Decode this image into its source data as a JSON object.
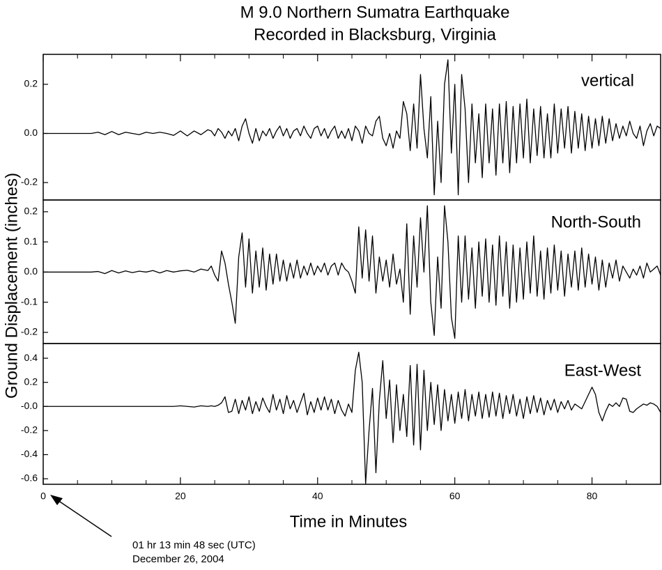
{
  "chart_data": [
    {
      "type": "line",
      "title": "M 9.0 Northern Sumatra Earthquake",
      "subtitle": "Recorded in Blacksburg, Virginia",
      "label": "vertical",
      "color": "#000000",
      "xlim": [
        0,
        90
      ],
      "xticks": [
        0,
        20,
        40,
        60,
        80
      ],
      "xminorticks": [
        5,
        10,
        15,
        25,
        30,
        35,
        45,
        50,
        55,
        65,
        70,
        75,
        85,
        90
      ],
      "ylim": [
        -0.271,
        0.322
      ],
      "yticks": [
        0.2,
        {
          "value": 0,
          "label": "0.0"
        },
        -0.2
      ],
      "x": [
        0,
        1,
        2,
        3,
        4,
        5,
        6,
        7,
        8,
        9,
        10,
        11,
        12,
        13,
        14,
        15,
        16,
        17,
        18,
        19,
        20,
        21,
        22,
        23,
        24,
        24.5,
        25,
        25.5,
        26,
        26.5,
        27,
        27.5,
        28,
        28.5,
        29,
        29.5,
        30,
        30.5,
        31,
        31.5,
        32,
        32.5,
        33,
        33.5,
        34,
        34.5,
        35,
        35.5,
        36,
        36.5,
        37,
        37.5,
        38,
        38.5,
        39,
        39.5,
        40,
        40.5,
        41,
        41.5,
        42,
        42.5,
        43,
        43.5,
        44,
        44.5,
        45,
        45.5,
        46,
        46.5,
        47,
        47.5,
        48,
        48.5,
        49,
        49.5,
        50,
        50.5,
        51,
        51.5,
        52,
        52.5,
        53,
        53.5,
        54,
        54.5,
        55,
        55.5,
        56,
        56.5,
        57,
        57.5,
        58,
        58.5,
        59,
        59.5,
        60,
        60.5,
        61,
        61.5,
        62,
        62.5,
        63,
        63.5,
        64,
        64.5,
        65,
        65.5,
        66,
        66.5,
        67,
        67.5,
        68,
        68.5,
        69,
        69.5,
        70,
        70.5,
        71,
        71.5,
        72,
        72.5,
        73,
        73.5,
        74,
        74.5,
        75,
        75.5,
        76,
        76.5,
        77,
        77.5,
        78,
        78.5,
        79,
        79.5,
        80,
        80.5,
        81,
        81.5,
        82,
        82.5,
        83,
        83.5,
        84,
        84.5,
        85,
        85.5,
        86,
        86.5,
        87,
        87.5,
        88,
        88.5,
        89,
        89.5,
        90
      ],
      "values": [
        0,
        0,
        0,
        0,
        0,
        0,
        0,
        0,
        0.005,
        -0.005,
        0.008,
        -0.005,
        0.005,
        0,
        -0.005,
        0.005,
        0,
        0.005,
        0,
        -0.008,
        0.01,
        -0.01,
        0.01,
        -0.005,
        0.015,
        0.01,
        -0.01,
        0.02,
        0.005,
        -0.02,
        0.01,
        -0.01,
        0.02,
        -0.03,
        0.03,
        0.06,
        0,
        -0.04,
        0.02,
        -0.03,
        0.01,
        -0.01,
        0.02,
        -0.02,
        0.01,
        0.03,
        -0.01,
        0.02,
        -0.02,
        0.01,
        0.02,
        -0.01,
        0.03,
        0,
        -0.02,
        0.02,
        0.03,
        -0.01,
        0.02,
        -0.02,
        0.01,
        0.03,
        -0.02,
        0.01,
        -0.02,
        0.02,
        -0.03,
        0.03,
        0.01,
        -0.04,
        0.03,
        0,
        -0.01,
        0.05,
        0.07,
        -0.02,
        -0.05,
        0,
        -0.06,
        0.01,
        -0.02,
        0.13,
        0.08,
        -0.07,
        0.12,
        -0.06,
        0.24,
        0.02,
        -0.1,
        0.15,
        -0.25,
        0.05,
        -0.2,
        0.2,
        0.3,
        -0.08,
        0.2,
        -0.25,
        0.24,
        0.1,
        -0.2,
        0.12,
        -0.12,
        0.08,
        -0.18,
        0.12,
        -0.12,
        0.1,
        -0.17,
        0.12,
        -0.12,
        0.13,
        -0.16,
        0.11,
        -0.12,
        0.12,
        -0.1,
        0.14,
        -0.12,
        0.1,
        -0.09,
        0.11,
        -0.1,
        0.08,
        -0.1,
        0.12,
        -0.08,
        0.1,
        -0.06,
        0.11,
        -0.08,
        0.09,
        -0.06,
        0.08,
        -0.07,
        0.07,
        -0.06,
        0.06,
        -0.05,
        0.07,
        -0.04,
        0.06,
        -0.03,
        0.04,
        -0.02,
        0.03,
        -0.01,
        0.05,
        0,
        -0.02,
        0.03,
        -0.05,
        0.01,
        0.04,
        -0.01,
        0.03,
        0.02
      ]
    },
    {
      "type": "line",
      "ylabel": "Ground Displacement (inches)",
      "label": "North-South",
      "color": "#000000",
      "xlim": [
        0,
        90
      ],
      "ylim": [
        -0.237,
        0.239
      ],
      "yticks": [
        0.2,
        0.1,
        {
          "value": 0,
          "label": "0.0"
        },
        -0.1,
        -0.2
      ],
      "x": [
        0,
        1,
        2,
        3,
        4,
        5,
        6,
        7,
        8,
        9,
        10,
        11,
        12,
        13,
        14,
        15,
        16,
        17,
        18,
        19,
        20,
        21,
        22,
        23,
        24,
        24.5,
        25,
        25.5,
        26,
        26.5,
        27,
        27.5,
        28,
        28.5,
        29,
        29.5,
        30,
        30.5,
        31,
        31.5,
        32,
        32.5,
        33,
        33.5,
        34,
        34.5,
        35,
        35.5,
        36,
        36.5,
        37,
        37.5,
        38,
        38.5,
        39,
        39.5,
        40,
        40.5,
        41,
        41.5,
        42,
        42.5,
        43,
        43.5,
        44,
        44.5,
        45,
        45.5,
        46,
        46.5,
        47,
        47.5,
        48,
        48.5,
        49,
        49.5,
        50,
        50.5,
        51,
        51.5,
        52,
        52.5,
        53,
        53.5,
        54,
        54.5,
        55,
        55.5,
        56,
        56.5,
        57,
        57.5,
        58,
        58.5,
        59,
        59.5,
        60,
        60.5,
        61,
        61.5,
        62,
        62.5,
        63,
        63.5,
        64,
        64.5,
        65,
        65.5,
        66,
        66.5,
        67,
        67.5,
        68,
        68.5,
        69,
        69.5,
        70,
        70.5,
        71,
        71.5,
        72,
        72.5,
        73,
        73.5,
        74,
        74.5,
        75,
        75.5,
        76,
        76.5,
        77,
        77.5,
        78,
        78.5,
        79,
        79.5,
        80,
        80.5,
        81,
        81.5,
        82,
        82.5,
        83,
        83.5,
        84,
        84.5,
        85,
        85.5,
        86,
        86.5,
        87,
        87.5,
        88,
        88.5,
        89,
        89.5,
        90
      ],
      "values": [
        0,
        0,
        0,
        0,
        0,
        0,
        0,
        0,
        0.002,
        -0.005,
        0.005,
        -0.003,
        0.004,
        -0.002,
        0.003,
        0,
        0.005,
        -0.003,
        0.005,
        0,
        0.004,
        0.006,
        0,
        0.01,
        0.005,
        0.02,
        -0.01,
        -0.03,
        0.07,
        0.03,
        -0.04,
        -0.1,
        -0.17,
        0.05,
        0.13,
        -0.05,
        0.11,
        -0.07,
        0.07,
        -0.05,
        0.08,
        -0.06,
        0.06,
        -0.04,
        0.06,
        -0.03,
        0.04,
        -0.03,
        0.03,
        -0.02,
        0.04,
        -0.02,
        0.02,
        -0.01,
        0.03,
        -0.01,
        0.02,
        0,
        0.03,
        -0.01,
        0.02,
        0.03,
        -0.01,
        0.03,
        0.01,
        0,
        -0.03,
        -0.07,
        0.15,
        -0.02,
        0.14,
        -0.03,
        0.12,
        -0.07,
        0.05,
        -0.03,
        0.04,
        -0.05,
        0.06,
        -0.04,
        0.01,
        -0.1,
        0.16,
        -0.14,
        0.12,
        -0.05,
        0.18,
        0,
        0.22,
        -0.1,
        -0.21,
        0.05,
        -0.12,
        0.22,
        0.1,
        -0.15,
        -0.22,
        0.12,
        -0.1,
        0.12,
        -0.09,
        0.08,
        -0.12,
        0.1,
        -0.08,
        0.11,
        -0.1,
        0.09,
        -0.11,
        0.12,
        -0.08,
        0.1,
        -0.12,
        0.09,
        -0.1,
        0.08,
        -0.09,
        0.1,
        -0.07,
        0.12,
        -0.08,
        0.07,
        -0.09,
        0.08,
        -0.07,
        0.09,
        -0.06,
        0.07,
        -0.08,
        0.06,
        -0.05,
        0.07,
        -0.06,
        0.08,
        -0.05,
        0.06,
        -0.04,
        0.05,
        -0.06,
        0.04,
        -0.05,
        0.03,
        -0.02,
        0.04,
        -0.03,
        0.02,
        0,
        -0.02,
        0.01,
        -0.01,
        0.02,
        -0.02,
        0.03,
        0,
        0.01,
        0.02,
        -0.01
      ]
    },
    {
      "type": "line",
      "xlabel": "Time in Minutes",
      "annotation": [
        "01 hr 13 min 48 sec (UTC)",
        "December 26, 2004"
      ],
      "label": "East-West",
      "color": "#000000",
      "xlim": [
        0,
        90
      ],
      "xticks": [
        0,
        20,
        40,
        60,
        80
      ],
      "xminorticks": [
        5,
        10,
        15,
        25,
        30,
        35,
        45,
        50,
        55,
        65,
        70,
        75,
        85,
        90
      ],
      "ylim": [
        -0.646,
        0.522
      ],
      "yticks": [
        0.4,
        0.2,
        {
          "value": 0,
          "label": "-0.0"
        },
        -0.2,
        -0.4,
        -0.6
      ],
      "x": [
        0,
        1,
        2,
        3,
        4,
        5,
        6,
        7,
        8,
        9,
        10,
        11,
        12,
        13,
        14,
        15,
        16,
        17,
        18,
        19,
        20,
        21,
        22,
        23,
        24,
        24.5,
        25,
        25.5,
        26,
        26.5,
        27,
        27.5,
        28,
        28.5,
        29,
        29.5,
        30,
        30.5,
        31,
        31.5,
        32,
        32.5,
        33,
        33.5,
        34,
        34.5,
        35,
        35.5,
        36,
        36.5,
        37,
        37.5,
        38,
        38.5,
        39,
        39.5,
        40,
        40.5,
        41,
        41.5,
        42,
        42.5,
        43,
        43.5,
        44,
        44.5,
        45,
        45.5,
        46,
        46.5,
        47,
        47.5,
        48,
        48.5,
        49,
        49.5,
        50,
        50.5,
        51,
        51.5,
        52,
        52.5,
        53,
        53.5,
        54,
        54.5,
        55,
        55.5,
        56,
        56.5,
        57,
        57.5,
        58,
        58.5,
        59,
        59.5,
        60,
        60.5,
        61,
        61.5,
        62,
        62.5,
        63,
        63.5,
        64,
        64.5,
        65,
        65.5,
        66,
        66.5,
        67,
        67.5,
        68,
        68.5,
        69,
        69.5,
        70,
        70.5,
        71,
        71.5,
        72,
        72.5,
        73,
        73.5,
        74,
        74.5,
        75,
        75.5,
        76,
        76.5,
        77,
        77.5,
        78,
        78.5,
        79,
        79.5,
        80,
        80.5,
        81,
        81.5,
        82,
        82.5,
        83,
        83.5,
        84,
        84.5,
        85,
        85.5,
        86,
        86.5,
        87,
        87.5,
        88,
        88.5,
        89,
        89.5,
        90
      ],
      "values": [
        0,
        0,
        0,
        0,
        0,
        0,
        0,
        0,
        0,
        0,
        0,
        0,
        0,
        0,
        0,
        0,
        0,
        0,
        0,
        0,
        0.005,
        0,
        -0.005,
        0.005,
        0,
        0.005,
        0,
        0.01,
        0.03,
        0.08,
        -0.05,
        -0.04,
        0.06,
        -0.06,
        0.05,
        -0.03,
        0.08,
        -0.06,
        0.04,
        -0.04,
        0.07,
        0,
        -0.05,
        0.1,
        -0.03,
        0.06,
        -0.06,
        0.09,
        -0.02,
        0.05,
        -0.05,
        0.03,
        0.11,
        -0.07,
        0.04,
        -0.05,
        0.07,
        -0.03,
        0.08,
        -0.03,
        0.06,
        -0.06,
        0.05,
        -0.03,
        -0.08,
        0.02,
        -0.05,
        0.3,
        0.45,
        0.2,
        -0.64,
        -0.2,
        0.15,
        -0.55,
        0.05,
        0.38,
        -0.1,
        0.22,
        -0.3,
        0.18,
        -0.2,
        0.1,
        -0.25,
        0.34,
        -0.32,
        0.35,
        -0.36,
        0.3,
        -0.2,
        0.2,
        -0.15,
        0.18,
        -0.2,
        0.14,
        -0.12,
        0.1,
        -0.14,
        0.12,
        -0.1,
        0.14,
        -0.12,
        0.1,
        -0.08,
        0.12,
        -0.1,
        0.1,
        -0.09,
        0.12,
        -0.08,
        0.11,
        -0.1,
        0.09,
        -0.06,
        0.1,
        -0.08,
        0.06,
        -0.1,
        0.08,
        -0.06,
        0.09,
        -0.05,
        0.07,
        -0.07,
        0.05,
        -0.03,
        0.06,
        -0.05,
        0.04,
        -0.02,
        0.05,
        -0.03,
        0.02,
        0,
        -0.02,
        0.04,
        0.1,
        0.16,
        0.1,
        -0.05,
        -0.12,
        -0.04,
        0.02,
        0,
        0.03,
        0,
        0.07,
        0.06,
        -0.04,
        -0.05,
        -0.02,
        0,
        0.02,
        0.01,
        0.03,
        0.02,
        0,
        -0.05
      ]
    }
  ]
}
